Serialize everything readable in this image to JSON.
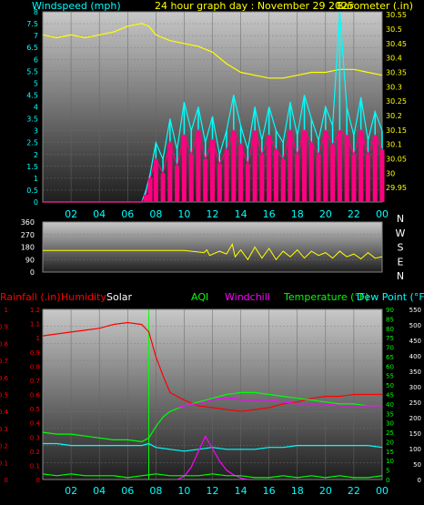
{
  "header": {
    "wind_label": "Windspeed (mph)",
    "title": "24 hour graph day : November 29 2025",
    "baro_label": "Barometer (.in)"
  },
  "bottom_legend": {
    "rainfall": "Rainfall (.in)",
    "humidity": "Humidity",
    "solar": "Solar",
    "aqi": "AQI",
    "windchill": "Windchill",
    "temperature": "Temperature (°F)",
    "dewpoint": "Dew Point (°F)"
  },
  "colors": {
    "background": "#000000",
    "plot_bg_top": "#c8c8c8",
    "plot_bg_bottom": "#1e1e1e",
    "wind_label": "#00ffff",
    "title": "#ffff00",
    "baro_label": "#ffff00",
    "windspeed": "#00ffff",
    "gust": "#ff0080",
    "barometer": "#ffff00",
    "direction": "#ffff00",
    "rainfall": "#ff0000",
    "humidity": "#ff0000",
    "solar": "#ffffff",
    "aqi": "#00ff00",
    "windchill": "#ff00ff",
    "temperature": "#00ff00",
    "dewpoint": "#00ffff",
    "x_labels": "#00ffff",
    "compass": "#ffffff"
  },
  "chart_data": [
    {
      "type": "line",
      "id": "wind-baro",
      "title": "24 hour graph day : November 29 2025",
      "x_ticks": [
        "02",
        "04",
        "06",
        "08",
        "10",
        "12",
        "14",
        "16",
        "18",
        "20",
        "22",
        "00"
      ],
      "y_left": {
        "label": "Windspeed (mph)",
        "ticks": [
          "0",
          "0.5",
          "1",
          "1.5",
          "2",
          "2.5",
          "3",
          "3.5",
          "4",
          "4.5",
          "5",
          "5.5",
          "6",
          "6.5",
          "7",
          "7.5",
          "8"
        ],
        "range": [
          0,
          8
        ]
      },
      "y_right": {
        "label": "Barometer (.in)",
        "ticks": [
          "29.95",
          "30",
          "30.05",
          "30.1",
          "30.15",
          "30.2",
          "30.25",
          "30.3",
          "30.35",
          "30.4",
          "30.45",
          "30.5",
          "30.55"
        ],
        "range": [
          29.9,
          30.56
        ]
      },
      "x_range_hours": [
        0,
        24
      ],
      "series": [
        {
          "key": "barometer",
          "axis": "right",
          "x": [
            0,
            1,
            2,
            3,
            4,
            5,
            6,
            7,
            7.5,
            8,
            9,
            10,
            11,
            12,
            13,
            14,
            15,
            16,
            17,
            18,
            19,
            20,
            21,
            22,
            23,
            24
          ],
          "y": [
            30.48,
            30.47,
            30.48,
            30.47,
            30.48,
            30.49,
            30.51,
            30.52,
            30.51,
            30.48,
            30.46,
            30.45,
            30.44,
            30.42,
            30.38,
            30.35,
            30.34,
            30.33,
            30.33,
            30.34,
            30.35,
            30.35,
            30.36,
            30.36,
            30.35,
            30.34
          ]
        },
        {
          "key": "windspeed",
          "axis": "left",
          "x": [
            0,
            7,
            7.3,
            7.6,
            8,
            8.5,
            9,
            9.5,
            10,
            10.5,
            11,
            11.5,
            12,
            12.5,
            13,
            13.5,
            14,
            14.5,
            15,
            15.5,
            16,
            16.5,
            17,
            17.5,
            18,
            18.5,
            19,
            19.5,
            20,
            20.5,
            21,
            21.5,
            22,
            22.5,
            23,
            23.5,
            24
          ],
          "y": [
            0,
            0,
            0.5,
            1.2,
            2.5,
            1.8,
            3.5,
            2.2,
            4.2,
            3.0,
            4.0,
            2.5,
            3.6,
            2.0,
            3.0,
            4.5,
            3.2,
            2.2,
            4.0,
            2.6,
            4.0,
            3.0,
            2.5,
            4.2,
            2.8,
            4.5,
            3.5,
            2.6,
            4.0,
            3.2,
            8.0,
            4.0,
            2.8,
            4.4,
            2.6,
            3.8,
            3.0
          ]
        },
        {
          "key": "gust",
          "axis": "left",
          "x": [
            0,
            7,
            7.3,
            7.6,
            8,
            8.5,
            9,
            9.5,
            10,
            10.5,
            11,
            11.5,
            12,
            12.5,
            13,
            13.5,
            14,
            14.5,
            15,
            15.5,
            16,
            16.5,
            17,
            17.5,
            18,
            18.5,
            19,
            19.5,
            20,
            20.5,
            21,
            21.5,
            22,
            22.5,
            23,
            23.5,
            24
          ],
          "y": [
            0,
            0,
            0.3,
            1.0,
            1.8,
            1.2,
            2.5,
            1.5,
            2.8,
            2.0,
            3.0,
            1.8,
            2.6,
            1.6,
            2.2,
            3.0,
            2.4,
            1.6,
            3.0,
            2.0,
            2.8,
            2.2,
            1.8,
            3.0,
            2.0,
            3.0,
            2.5,
            2.0,
            3.0,
            2.4,
            3.0,
            2.8,
            2.0,
            3.0,
            2.0,
            2.8,
            2.2
          ]
        }
      ]
    },
    {
      "type": "line",
      "id": "wind-direction",
      "y_ticks": [
        "0",
        "90",
        "180",
        "270",
        "360"
      ],
      "y_range": [
        0,
        360
      ],
      "compass": [
        "N",
        "W",
        "S",
        "E",
        "N"
      ],
      "x_range_hours": [
        0,
        24
      ],
      "series": [
        {
          "key": "direction",
          "x": [
            0,
            6,
            8,
            10,
            11.4,
            11.6,
            11.8,
            12.5,
            13,
            13.4,
            13.6,
            14,
            14.5,
            15,
            15.5,
            16,
            16.5,
            17,
            17.5,
            18,
            18.5,
            19,
            19.5,
            20,
            20.5,
            21,
            21.5,
            22,
            22.5,
            23,
            23.5,
            24
          ],
          "y": [
            155,
            155,
            155,
            155,
            140,
            160,
            120,
            150,
            130,
            200,
            110,
            160,
            90,
            180,
            100,
            170,
            90,
            150,
            110,
            160,
            100,
            150,
            120,
            140,
            100,
            150,
            110,
            130,
            95,
            140,
            100,
            110
          ]
        }
      ]
    },
    {
      "type": "line",
      "id": "temp-hum-rain",
      "y_left": {
        "label": "Rainfall (.in)",
        "ticks": [
          "0",
          "0.1",
          "0.2",
          "0.3",
          "0.4",
          "0.5",
          "0.6",
          "0.7",
          "0.8",
          "0.9",
          "1"
        ],
        "range": [
          0,
          1
        ]
      },
      "y_left2": {
        "label": "Humidity",
        "ticks": [
          "0",
          "0.1",
          "0.2",
          "0.3",
          "0.4",
          "0.5",
          "0.6",
          "0.7",
          "0.8",
          "0.9",
          "1",
          "1.1",
          "1.2"
        ],
        "range": [
          0,
          1.2
        ]
      },
      "y_right": {
        "label": "Temperature (°F)",
        "ticks": [
          "0",
          "5",
          "10",
          "15",
          "20",
          "25",
          "30",
          "35",
          "40",
          "45",
          "50",
          "55",
          "60",
          "65",
          "70",
          "75",
          "80",
          "85",
          "90"
        ],
        "range": [
          0,
          90
        ]
      },
      "y_right2": {
        "label": "Solar",
        "ticks": [
          "0",
          "50",
          "100",
          "150",
          "200",
          "250",
          "300",
          "350",
          "400",
          "450",
          "500",
          "550"
        ],
        "range": [
          0,
          550
        ]
      },
      "x_ticks": [
        "02",
        "04",
        "06",
        "08",
        "10",
        "12",
        "14",
        "16",
        "18",
        "20",
        "22",
        "00"
      ],
      "x_range_hours": [
        0,
        24
      ],
      "markers": [
        {
          "x": 7.5
        }
      ],
      "series": [
        {
          "key": "humidity",
          "axis": "right",
          "x": [
            0,
            1,
            2,
            3,
            4,
            5,
            6,
            7,
            7.5,
            8,
            8.5,
            9,
            10,
            11,
            12,
            13,
            14,
            15,
            16,
            17,
            18,
            19,
            20,
            21,
            22,
            23,
            24
          ],
          "y": [
            76,
            77,
            78,
            79,
            80,
            82,
            83,
            82,
            78,
            65,
            55,
            46,
            42,
            39,
            38,
            37,
            36,
            37,
            38,
            40,
            41,
            43,
            44,
            44,
            45,
            45,
            45
          ]
        },
        {
          "key": "temperature",
          "axis": "right",
          "x": [
            0,
            1,
            2,
            3,
            4,
            5,
            6,
            7,
            7.5,
            8,
            8.5,
            9,
            10,
            11,
            12,
            13,
            14,
            15,
            16,
            17,
            18,
            19,
            20,
            21,
            22,
            23,
            24
          ],
          "y": [
            25,
            24,
            24,
            23,
            22,
            21,
            21,
            20,
            22,
            28,
            33,
            36,
            39,
            41,
            43,
            45,
            46,
            46,
            45,
            44,
            43,
            42,
            41,
            40,
            40,
            39,
            39
          ]
        },
        {
          "key": "windchill",
          "axis": "right",
          "x": [
            9.5,
            10,
            10.5,
            11,
            11.5,
            12,
            12.5,
            13,
            13.5,
            14,
            15,
            16,
            17,
            18,
            19,
            20,
            21,
            22,
            23,
            24
          ],
          "y": [
            38,
            39,
            40,
            40,
            41,
            42,
            43,
            43,
            43,
            42,
            42,
            42,
            41,
            40,
            40,
            40,
            39,
            39,
            39,
            39
          ]
        },
        {
          "key": "dewpoint",
          "axis": "right",
          "x": [
            0,
            1,
            2,
            3,
            4,
            5,
            6,
            7,
            7.5,
            8,
            9,
            10,
            11,
            12,
            13,
            14,
            15,
            16,
            17,
            18,
            19,
            20,
            21,
            22,
            23,
            24
          ],
          "y": [
            19,
            19,
            18,
            18,
            18,
            18,
            18,
            18,
            19,
            17,
            16,
            15,
            16,
            17,
            16,
            16,
            16,
            17,
            17,
            18,
            18,
            18,
            18,
            18,
            18,
            17
          ]
        },
        {
          "key": "solar",
          "axis": "solar",
          "x": [
            9.5,
            10,
            10.5,
            11,
            11.5,
            12,
            12.5,
            13,
            13.5,
            14,
            14.5
          ],
          "y": [
            0,
            10,
            40,
            90,
            140,
            100,
            60,
            30,
            15,
            5,
            0
          ]
        },
        {
          "key": "aqi",
          "axis": "right",
          "x": [
            0,
            1,
            2,
            3,
            4,
            5,
            6,
            7,
            8,
            9,
            10,
            11,
            12,
            13,
            14,
            15,
            16,
            17,
            18,
            19,
            20,
            21,
            22,
            23,
            24
          ],
          "y": [
            3,
            2,
            3,
            2,
            2,
            2,
            1,
            2,
            3,
            2,
            2,
            2,
            3,
            2,
            2,
            1,
            1,
            2,
            1,
            2,
            1,
            2,
            1,
            1,
            2
          ]
        }
      ]
    }
  ]
}
